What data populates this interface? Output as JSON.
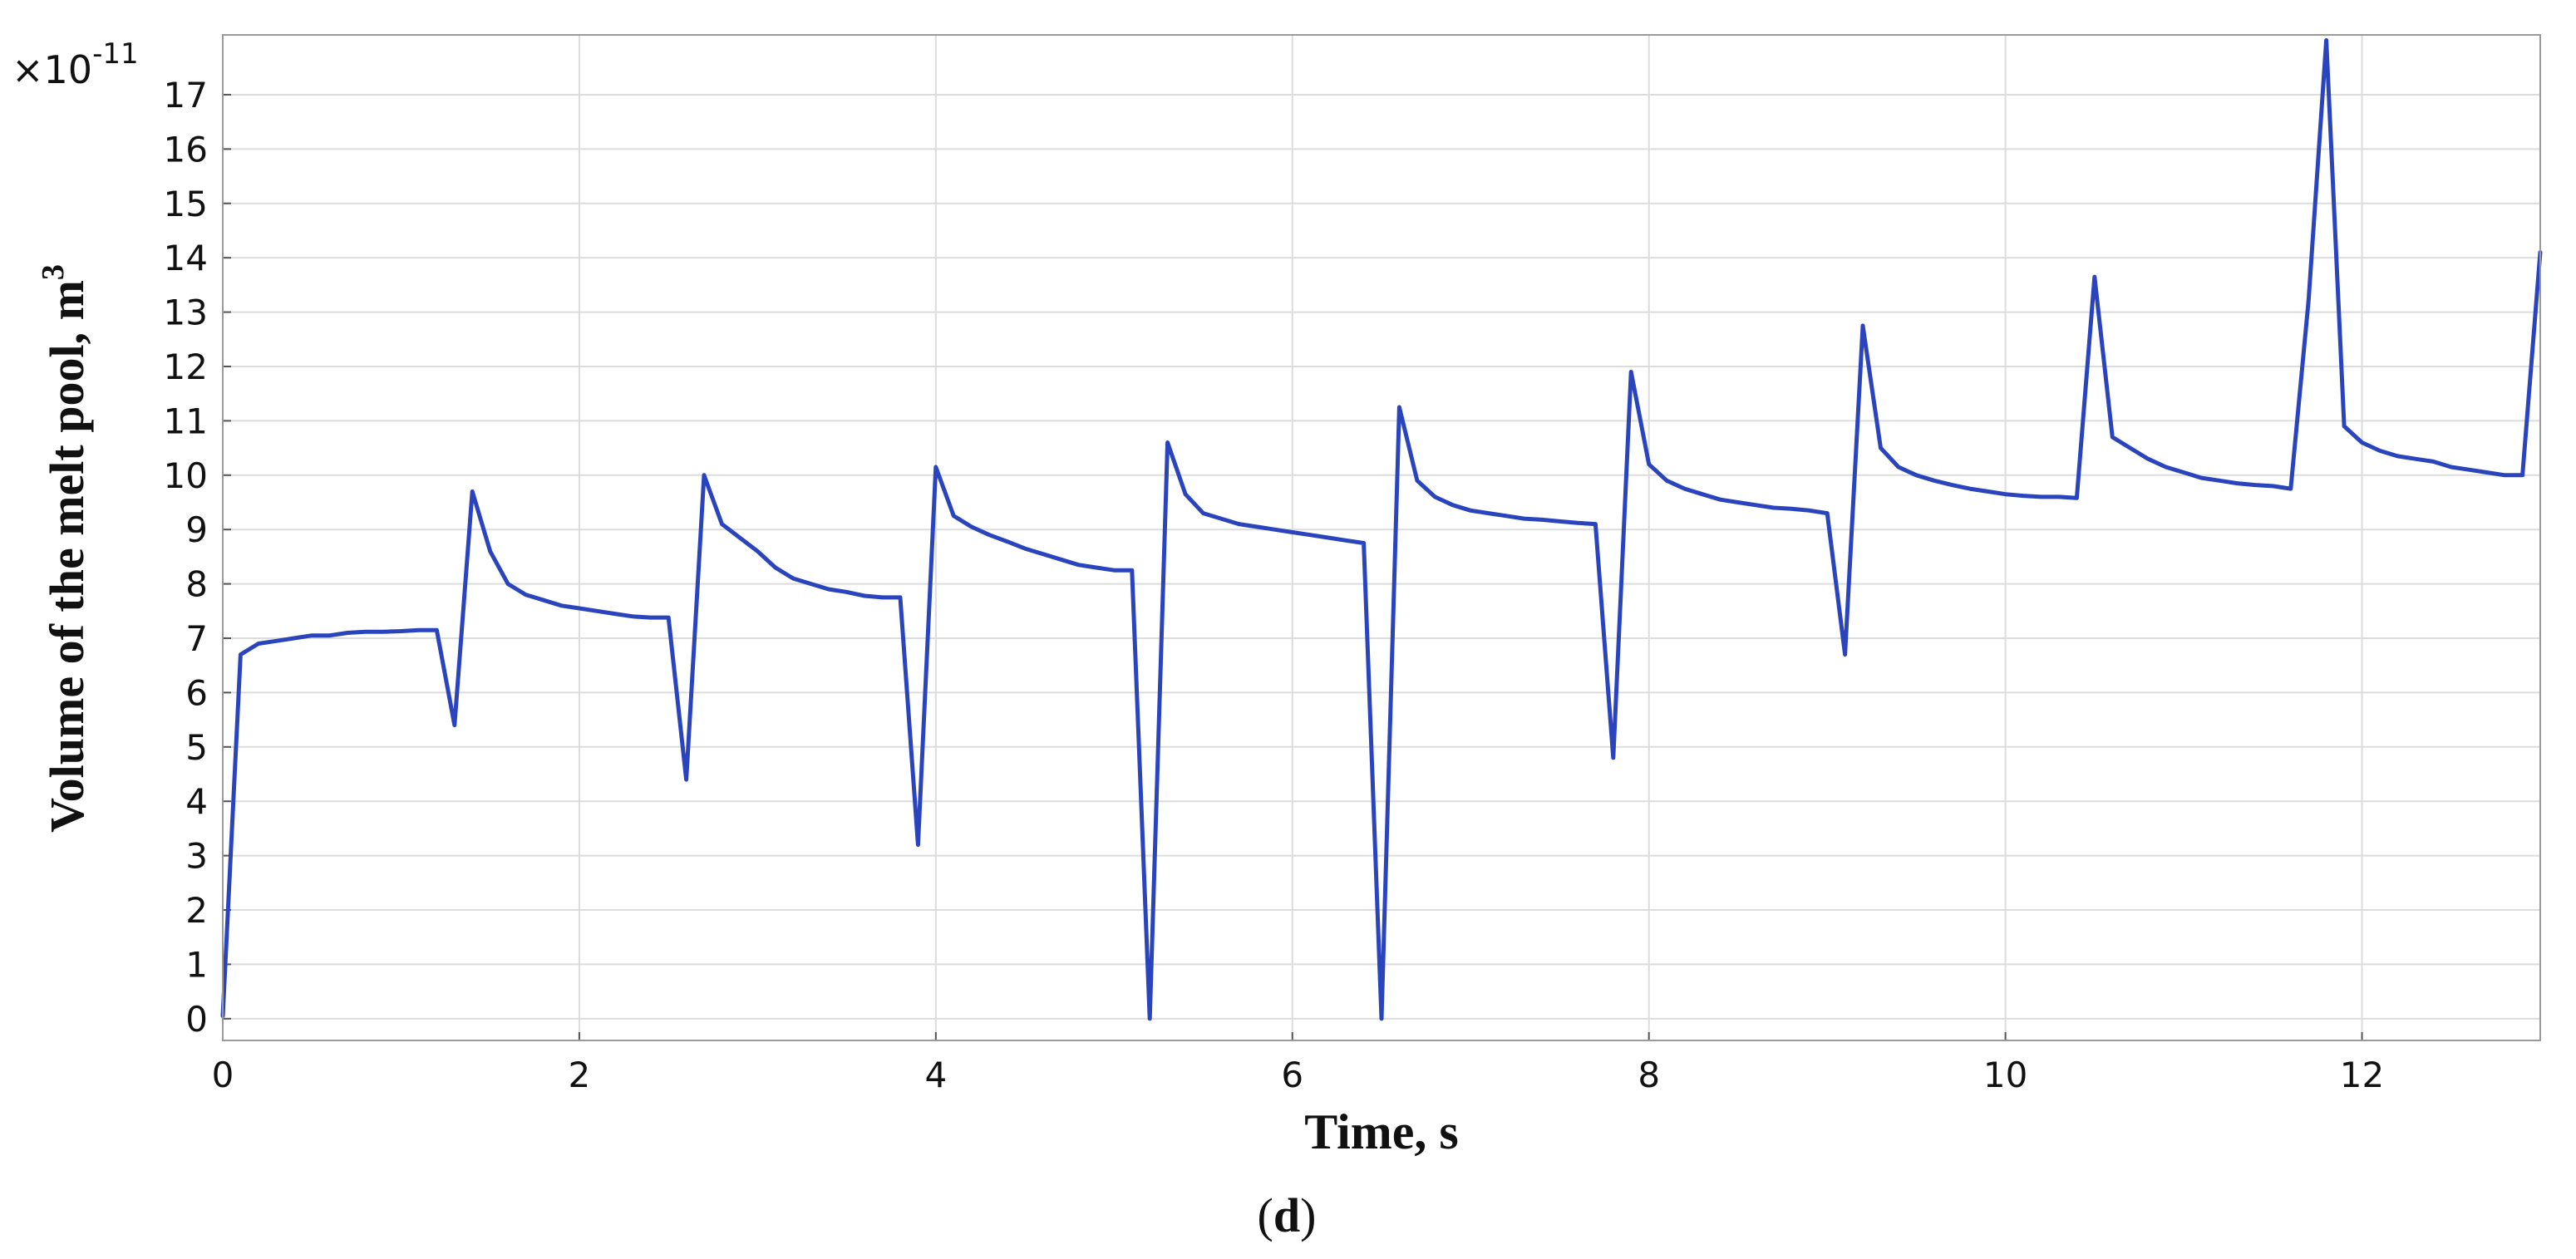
{
  "chart_data": {
    "type": "line",
    "xlabel": "Time, s",
    "ylabel": "Volume of the melt pool, m",
    "ylabel_superscript": "3",
    "y_multiplier": "×10",
    "y_multiplier_exponent": "-11",
    "caption_open": "(",
    "caption_letter": "d",
    "caption_close": ")",
    "xlim": [
      0,
      13
    ],
    "ylim": [
      -0.4,
      18.1
    ],
    "x_ticks": [
      "0",
      "2",
      "4",
      "6",
      "8",
      "10",
      "12"
    ],
    "y_ticks": [
      "0",
      "1",
      "2",
      "3",
      "4",
      "5",
      "6",
      "7",
      "8",
      "9",
      "10",
      "11",
      "12",
      "13",
      "14",
      "15",
      "16",
      "17"
    ],
    "grid": true,
    "series": [
      {
        "color": "#2a44bd",
        "x": [
          0,
          0.1,
          0.2,
          0.3,
          0.4,
          0.5,
          0.6,
          0.7,
          0.8,
          0.9,
          1.0,
          1.1,
          1.2,
          1.3,
          1.4,
          1.5,
          1.6,
          1.7,
          1.8,
          1.9,
          2.0,
          2.1,
          2.2,
          2.3,
          2.4,
          2.5,
          2.6,
          2.7,
          2.8,
          2.9,
          3.0,
          3.1,
          3.2,
          3.3,
          3.4,
          3.5,
          3.6,
          3.7,
          3.8,
          3.9,
          4.0,
          4.1,
          4.2,
          4.3,
          4.4,
          4.5,
          4.6,
          4.7,
          4.8,
          4.9,
          5.0,
          5.1,
          5.2,
          5.3,
          5.4,
          5.5,
          5.6,
          5.7,
          5.8,
          5.9,
          6.0,
          6.1,
          6.2,
          6.3,
          6.4,
          6.5,
          6.6,
          6.7,
          6.8,
          6.9,
          7.0,
          7.1,
          7.2,
          7.3,
          7.4,
          7.5,
          7.6,
          7.7,
          7.8,
          7.9,
          8.0,
          8.1,
          8.2,
          8.3,
          8.4,
          8.5,
          8.6,
          8.7,
          8.8,
          8.9,
          9.0,
          9.1,
          9.2,
          9.3,
          9.4,
          9.5,
          9.6,
          9.7,
          9.8,
          9.9,
          10.0,
          10.1,
          10.2,
          10.3,
          10.4,
          10.5,
          10.6,
          10.7,
          10.8,
          10.9,
          11.0,
          11.1,
          11.2,
          11.3,
          11.4,
          11.5,
          11.6,
          11.7,
          11.8,
          11.9,
          12.0,
          12.1,
          12.2,
          12.3,
          12.4,
          12.5,
          12.6,
          12.7,
          12.8,
          12.9,
          13.0
        ],
        "y": [
          0.05,
          6.7,
          6.9,
          6.95,
          7.0,
          7.05,
          7.05,
          7.1,
          7.12,
          7.12,
          7.13,
          7.15,
          7.15,
          5.4,
          9.7,
          8.6,
          8.0,
          7.8,
          7.7,
          7.6,
          7.55,
          7.5,
          7.45,
          7.4,
          7.38,
          7.38,
          4.4,
          10.0,
          9.1,
          8.85,
          8.6,
          8.3,
          8.1,
          8.0,
          7.9,
          7.85,
          7.78,
          7.75,
          7.75,
          3.2,
          10.15,
          9.25,
          9.05,
          8.9,
          8.78,
          8.65,
          8.55,
          8.45,
          8.35,
          8.3,
          8.25,
          8.25,
          0.0,
          10.6,
          9.65,
          9.3,
          9.2,
          9.1,
          9.05,
          9.0,
          8.95,
          8.9,
          8.85,
          8.8,
          8.75,
          0.0,
          11.25,
          9.9,
          9.6,
          9.45,
          9.35,
          9.3,
          9.25,
          9.2,
          9.18,
          9.15,
          9.12,
          9.1,
          4.8,
          11.9,
          10.2,
          9.9,
          9.75,
          9.65,
          9.55,
          9.5,
          9.45,
          9.4,
          9.38,
          9.35,
          9.3,
          6.7,
          12.75,
          10.5,
          10.15,
          10.0,
          9.9,
          9.82,
          9.75,
          9.7,
          9.65,
          9.62,
          9.6,
          9.6,
          9.58,
          13.65,
          10.7,
          10.5,
          10.3,
          10.15,
          10.05,
          9.95,
          9.9,
          9.85,
          9.82,
          9.8,
          9.75,
          13.2,
          18.0,
          10.9,
          10.6,
          10.45,
          10.35,
          10.3,
          10.25,
          10.15,
          10.1,
          10.05,
          10.0,
          10.0,
          14.1
        ]
      }
    ]
  }
}
